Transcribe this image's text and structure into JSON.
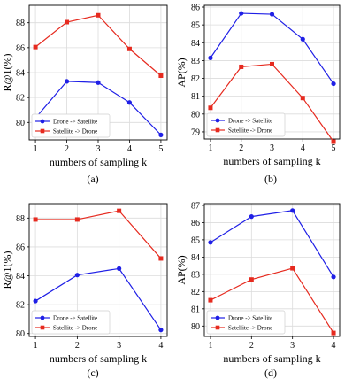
{
  "chart_data": [
    {
      "type": "line",
      "caption": "(a)",
      "xlabel": "numbers of sampling k",
      "ylabel": "R@1(%)",
      "x": [
        1,
        2,
        3,
        4,
        5
      ],
      "xlim": [
        0.8,
        5.2
      ],
      "ylim": [
        78.6,
        89.4
      ],
      "yticks": [
        80,
        82,
        84,
        86,
        88
      ],
      "grid": true,
      "legend_position": "lower-left",
      "series": [
        {
          "name": "Drone -> Satellite",
          "color": "#1f1fe6",
          "marker": "circle",
          "values": [
            80.35,
            83.3,
            83.2,
            81.6,
            79.0
          ]
        },
        {
          "name": "Satellite -> Drone",
          "color": "#e62a1f",
          "marker": "square",
          "values": [
            86.05,
            88.05,
            88.6,
            85.9,
            83.75
          ]
        }
      ]
    },
    {
      "type": "line",
      "caption": "(b)",
      "xlabel": "numbers of sampling k",
      "ylabel": "AP(%)",
      "x": [
        1,
        2,
        3,
        4,
        5
      ],
      "xlim": [
        0.8,
        5.2
      ],
      "ylim": [
        78.6,
        86.1
      ],
      "yticks": [
        79,
        80,
        81,
        82,
        83,
        84,
        85,
        86
      ],
      "grid": true,
      "legend_position": "lower-left",
      "series": [
        {
          "name": "Drone -> Satellite",
          "color": "#1f1fe6",
          "marker": "circle",
          "values": [
            83.15,
            85.65,
            85.6,
            84.2,
            81.7
          ]
        },
        {
          "name": "Satellite -> Drone",
          "color": "#e62a1f",
          "marker": "square",
          "values": [
            80.35,
            82.65,
            82.8,
            80.9,
            78.45
          ]
        }
      ]
    },
    {
      "type": "line",
      "caption": "(c)",
      "xlabel": "numbers of sampling k",
      "ylabel": "R@1(%)",
      "x": [
        1,
        2,
        3,
        4
      ],
      "xlim": [
        0.85,
        4.15
      ],
      "ylim": [
        79.8,
        89.0
      ],
      "yticks": [
        80,
        82,
        84,
        86,
        88
      ],
      "grid": true,
      "legend_position": "lower-left",
      "series": [
        {
          "name": "Drone -> Satellite",
          "color": "#1f1fe6",
          "marker": "circle",
          "values": [
            82.25,
            84.05,
            84.5,
            80.25
          ]
        },
        {
          "name": "Satellite -> Drone",
          "color": "#e62a1f",
          "marker": "square",
          "values": [
            87.9,
            87.9,
            88.5,
            85.2
          ]
        }
      ]
    },
    {
      "type": "line",
      "caption": "(d)",
      "xlabel": "numbers of sampling k",
      "ylabel": "AP(%)",
      "x": [
        1,
        2,
        3,
        4
      ],
      "xlim": [
        0.85,
        4.15
      ],
      "ylim": [
        79.4,
        87.1
      ],
      "yticks": [
        80,
        81,
        82,
        83,
        84,
        85,
        86,
        87
      ],
      "grid": true,
      "legend_position": "lower-left",
      "series": [
        {
          "name": "Drone -> Satellite",
          "color": "#1f1fe6",
          "marker": "circle",
          "values": [
            84.85,
            86.35,
            86.7,
            82.85
          ]
        },
        {
          "name": "Satellite -> Drone",
          "color": "#e62a1f",
          "marker": "square",
          "values": [
            81.5,
            82.7,
            83.35,
            79.6
          ]
        }
      ]
    }
  ]
}
